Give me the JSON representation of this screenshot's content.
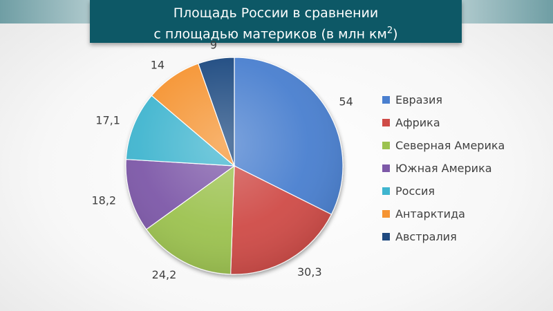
{
  "title": {
    "line1": "Площадь России в сравнении",
    "line2_prefix": "с площадью материков (в млн км",
    "line2_sup": "2",
    "line2_suffix": ")"
  },
  "chart_data": {
    "type": "pie",
    "categories": [
      "Евразия",
      "Африка",
      "Северная Америка",
      "Южная Америка",
      "Россия",
      "Антарктида",
      "Австралия"
    ],
    "values": [
      54,
      30.3,
      24.2,
      18.2,
      17.1,
      14,
      9
    ],
    "labels": [
      "54",
      "30,3",
      "24,2",
      "18,2",
      "17,1",
      "14",
      "9"
    ],
    "colors": [
      "#4a7fcf",
      "#cf4b47",
      "#9cc24f",
      "#7d59a8",
      "#3fb5cf",
      "#f59432",
      "#1f4a80"
    ],
    "start_angle": "12 o'clock",
    "direction": "clockwise",
    "legend_position": "right"
  }
}
